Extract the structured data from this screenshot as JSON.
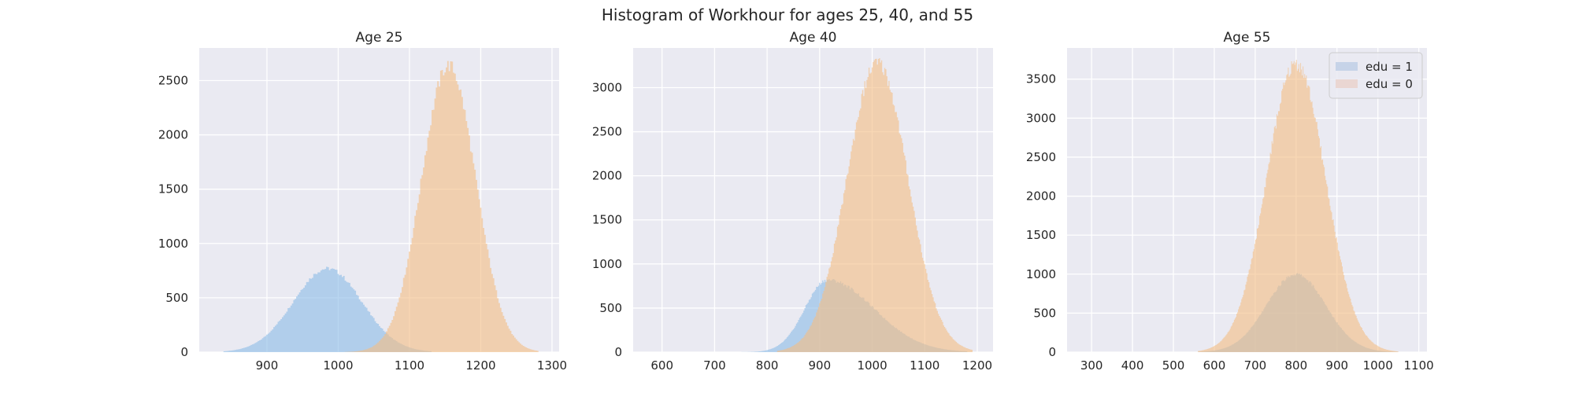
{
  "figure_title": "Histogram of Workhour for ages 25, 40, and 55",
  "colors": {
    "background": "#EAEAF2",
    "grid": "#FFFFFF",
    "edu1": "#8EBDE6",
    "edu0": "#F4BF86",
    "legend_edu1_swatch": "#C6D3E8",
    "legend_edu0_swatch": "#EAD6D2"
  },
  "chart_data": [
    {
      "type": "histogram",
      "title": "Age 25",
      "xlim": [
        805,
        1310
      ],
      "ylim": [
        0,
        2800
      ],
      "xticks": [
        900,
        1000,
        1100,
        1200,
        1300
      ],
      "yticks": [
        0,
        500,
        1000,
        1500,
        2000,
        2500
      ],
      "grid": true,
      "series": [
        {
          "name": "edu = 1",
          "color": "#8EBDE6",
          "shape": "normal",
          "mean": 985,
          "sd": 48,
          "peak": 770,
          "support": [
            840,
            1130
          ]
        },
        {
          "name": "edu = 0",
          "color": "#F4BF86",
          "shape": "normal",
          "mean": 1155,
          "sd": 38,
          "peak": 2640,
          "support": [
            1010,
            1280
          ]
        }
      ]
    },
    {
      "type": "histogram",
      "title": "Age 40",
      "xlim": [
        545,
        1230
      ],
      "ylim": [
        0,
        3450
      ],
      "xticks": [
        600,
        700,
        800,
        900,
        1000,
        1100,
        1200
      ],
      "yticks": [
        0,
        500,
        1000,
        1500,
        2000,
        2500,
        3000
      ],
      "grid": true,
      "series": [
        {
          "name": "edu = 1",
          "color": "#8EBDE6",
          "shape": "skewed",
          "mode": 915,
          "sd_left": 43,
          "sd_right": 88,
          "peak": 820,
          "support": [
            700,
            1180
          ]
        },
        {
          "name": "edu = 0",
          "color": "#F4BF86",
          "shape": "normal",
          "mean": 1010,
          "sd": 58,
          "peak": 3280,
          "support": [
            820,
            1190
          ]
        }
      ]
    },
    {
      "type": "histogram",
      "title": "Age 55",
      "xlim": [
        240,
        1120
      ],
      "ylim": [
        0,
        3900
      ],
      "xticks": [
        300,
        400,
        500,
        600,
        700,
        800,
        900,
        1000,
        1100
      ],
      "yticks": [
        0,
        500,
        1000,
        1500,
        2000,
        2500,
        3000,
        3500
      ],
      "grid": true,
      "legend": {
        "placement": "top-right",
        "entries": [
          {
            "label": "edu = 1",
            "color": "#C6D3E8"
          },
          {
            "label": "edu = 0",
            "color": "#EAD6D2"
          }
        ]
      },
      "series": [
        {
          "name": "edu = 1",
          "color": "#8EBDE6",
          "shape": "normal",
          "mean": 800,
          "sd": 72,
          "peak": 1000,
          "support": [
            560,
            1050
          ]
        },
        {
          "name": "edu = 0",
          "color": "#F4BF86",
          "shape": "normal",
          "mean": 800,
          "sd": 72,
          "peak": 3700,
          "support": [
            560,
            1050
          ]
        }
      ]
    }
  ]
}
